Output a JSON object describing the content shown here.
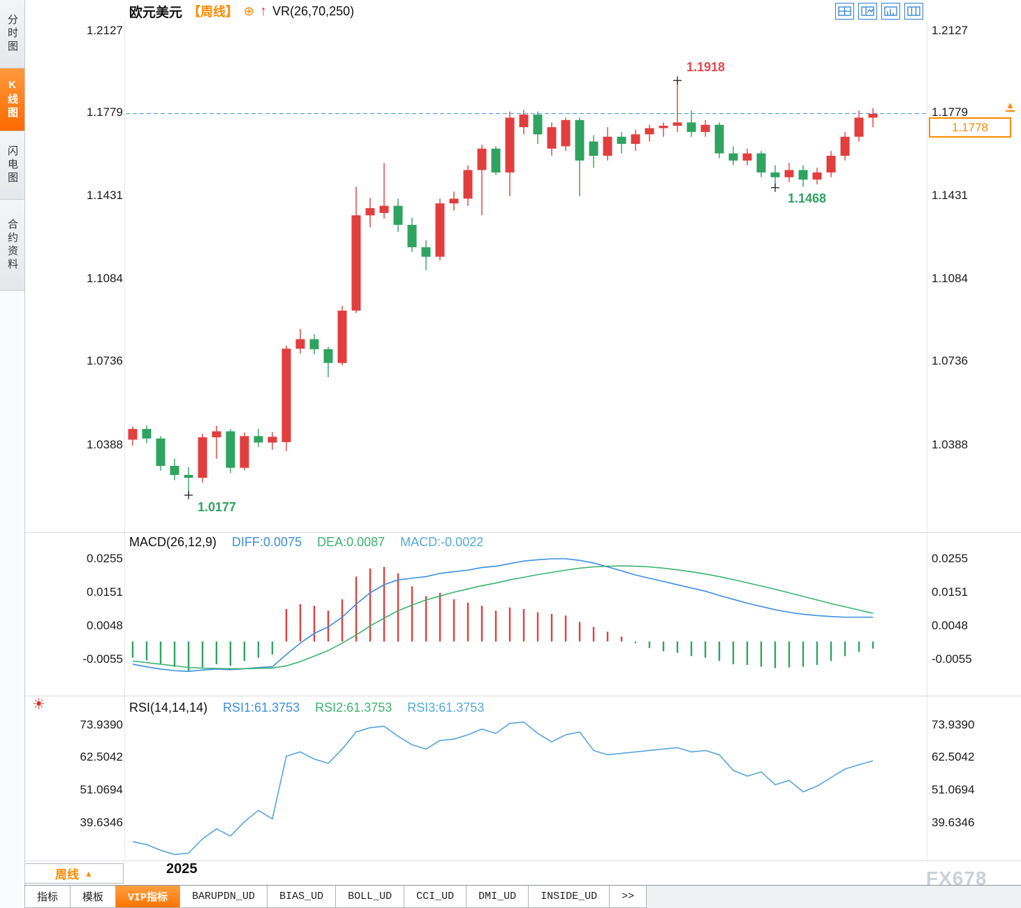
{
  "watermark": "FX678",
  "sidebar": {
    "items": [
      {
        "label": "分时图",
        "active": false
      },
      {
        "label": "K线图",
        "active": true
      },
      {
        "label": "闪电图",
        "active": false
      },
      {
        "label": "合约资料",
        "active": false
      }
    ]
  },
  "header": {
    "symbol": "欧元美元",
    "period_tag": "【周线】",
    "plus_icon": "⊕",
    "arrow_icon": "↑",
    "indicator": "VR(26,70,250)"
  },
  "icons": {
    "layout_icons": [
      "four-pane-grid",
      "two-pane-layout",
      "bar-pane-layout",
      "multi-column-layout"
    ],
    "rsi_settings_glyph": "☀",
    "price_marker_glyph": "▲"
  },
  "price_axis": {
    "ticks": [
      "1.2127",
      "1.1779",
      "1.1431",
      "1.1084",
      "1.0736",
      "1.0388"
    ],
    "current_price": "1.1778"
  },
  "annotations": {
    "high": "1.1918",
    "low_mid": "1.1468",
    "low": "1.0177"
  },
  "macd_panel": {
    "title": "MACD(26,12,9)",
    "diff_label": "DIFF:0.0075",
    "dea_label": "DEA:0.0087",
    "macd_label": "MACD:-0.0022",
    "ticks": [
      "0.0255",
      "0.0151",
      "0.0048",
      "-0.0055"
    ]
  },
  "rsi_panel": {
    "title": "RSI(14,14,14)",
    "rsi1_label": "RSI1:61.3753",
    "rsi2_label": "RSI2:61.3753",
    "rsi3_label": "RSI3:61.3753",
    "ticks": [
      "73.9390",
      "62.5042",
      "51.0694",
      "39.6346"
    ]
  },
  "bottom": {
    "timeframe": "周线",
    "timeframe_arrow": "▲",
    "year_label": "2025",
    "tabs": [
      {
        "label": "指标",
        "active": false
      },
      {
        "label": "模板",
        "active": false
      },
      {
        "label": "VIP指标",
        "active": true
      },
      {
        "label": "BARUPDN_UD",
        "active": false
      },
      {
        "label": "BIAS_UD",
        "active": false
      },
      {
        "label": "BOLL_UD",
        "active": false
      },
      {
        "label": "CCI_UD",
        "active": false
      },
      {
        "label": "DMI_UD",
        "active": false
      },
      {
        "label": "INSIDE_UD",
        "active": false
      },
      {
        "label": ">>",
        "active": false
      }
    ]
  },
  "chart_data": [
    {
      "type": "candlestick",
      "title": "欧元美元 周线 (EURUSD weekly)",
      "x_start_label": "2025",
      "yticks": [
        1.2127,
        1.1779,
        1.1431,
        1.1084,
        1.0736,
        1.0388
      ],
      "ylim": [
        1.0027,
        1.2168
      ],
      "dashed_level": 1.1779,
      "dashed_color": "#3f8fde",
      "up_color": "#e23e3e",
      "down_color": "#2fa360",
      "markers": [
        {
          "i": 39,
          "price": 1.1918,
          "label": "1.1918"
        },
        {
          "i": 46,
          "price": 1.1468,
          "label": "1.1468"
        },
        {
          "i": 4,
          "price": 1.0177,
          "label": "1.0177"
        }
      ],
      "candles": [
        [
          1.041,
          1.0465,
          1.0385,
          1.0455
        ],
        [
          1.0455,
          1.047,
          1.0395,
          1.0415
        ],
        [
          1.0415,
          1.0425,
          1.028,
          1.03
        ],
        [
          1.03,
          1.033,
          1.024,
          1.0262
        ],
        [
          1.0262,
          1.0295,
          1.0177,
          1.025
        ],
        [
          1.025,
          1.0435,
          1.023,
          1.042
        ],
        [
          1.042,
          1.0468,
          1.033,
          1.0445
        ],
        [
          1.0445,
          1.0455,
          1.027,
          1.0292
        ],
        [
          1.0292,
          1.044,
          1.0282,
          1.0425
        ],
        [
          1.0425,
          1.0455,
          1.038,
          1.0398
        ],
        [
          1.0398,
          1.0442,
          1.0368,
          1.0422
        ],
        [
          1.04,
          1.0805,
          1.0362,
          1.0792
        ],
        [
          1.0792,
          1.0875,
          1.0772,
          1.0832
        ],
        [
          1.0832,
          1.0852,
          1.0768,
          1.079
        ],
        [
          1.079,
          1.08,
          1.0672,
          1.0732
        ],
        [
          1.0732,
          1.0972,
          1.0722,
          1.0952
        ],
        [
          1.0952,
          1.1472,
          1.0942,
          1.1352
        ],
        [
          1.1352,
          1.1425,
          1.1302,
          1.1382
        ],
        [
          1.1362,
          1.1572,
          1.1338,
          1.1392
        ],
        [
          1.1392,
          1.1422,
          1.1282,
          1.1312
        ],
        [
          1.1312,
          1.1342,
          1.1198,
          1.1218
        ],
        [
          1.1218,
          1.1248,
          1.1122,
          1.1178
        ],
        [
          1.1178,
          1.1422,
          1.1162,
          1.1402
        ],
        [
          1.1402,
          1.1452,
          1.1372,
          1.1422
        ],
        [
          1.1422,
          1.1562,
          1.1392,
          1.1542
        ],
        [
          1.1542,
          1.1648,
          1.1352,
          1.1632
        ],
        [
          1.1632,
          1.1642,
          1.1522,
          1.1532
        ],
        [
          1.1532,
          1.1788,
          1.1432,
          1.1762
        ],
        [
          1.1722,
          1.1795,
          1.1692,
          1.1775
        ],
        [
          1.1775,
          1.1788,
          1.1652,
          1.1692
        ],
        [
          1.1632,
          1.1742,
          1.1602,
          1.1722
        ],
        [
          1.1642,
          1.1762,
          1.1622,
          1.1752
        ],
        [
          1.1752,
          1.1762,
          1.1432,
          1.1582
        ],
        [
          1.1662,
          1.1688,
          1.1552,
          1.1602
        ],
        [
          1.1602,
          1.1722,
          1.1582,
          1.1682
        ],
        [
          1.1682,
          1.1702,
          1.1612,
          1.1652
        ],
        [
          1.1652,
          1.1712,
          1.1622,
          1.1692
        ],
        [
          1.1692,
          1.1732,
          1.1662,
          1.1718
        ],
        [
          1.1718,
          1.1742,
          1.1682,
          1.1728
        ],
        [
          1.1728,
          1.1918,
          1.1702,
          1.1742
        ],
        [
          1.1742,
          1.1792,
          1.1682,
          1.1702
        ],
        [
          1.1702,
          1.1752,
          1.1682,
          1.1732
        ],
        [
          1.1732,
          1.1742,
          1.1592,
          1.1612
        ],
        [
          1.1612,
          1.1642,
          1.1562,
          1.1582
        ],
        [
          1.1582,
          1.1632,
          1.1562,
          1.1612
        ],
        [
          1.1612,
          1.1622,
          1.1512,
          1.1532
        ],
        [
          1.1532,
          1.1562,
          1.1468,
          1.1512
        ],
        [
          1.1512,
          1.1572,
          1.1492,
          1.1542
        ],
        [
          1.1542,
          1.1562,
          1.1472,
          1.1502
        ],
        [
          1.1502,
          1.1552,
          1.1482,
          1.1532
        ],
        [
          1.1532,
          1.1622,
          1.1512,
          1.1602
        ],
        [
          1.1602,
          1.1702,
          1.1582,
          1.1682
        ],
        [
          1.1682,
          1.1792,
          1.1662,
          1.1762
        ],
        [
          1.1762,
          1.1802,
          1.1722,
          1.1778
        ]
      ]
    },
    {
      "type": "macd",
      "title": "MACD(26,12,9)",
      "yticks": [
        0.0255,
        0.0151,
        0.0048,
        -0.0055
      ],
      "diff_color": "#3d8ee0",
      "dea_color": "#3cb371",
      "hist_up": "#e23e3e",
      "hist_down": "#2fa360",
      "diff": [
        -0.007,
        -0.0078,
        -0.0085,
        -0.009,
        -0.0092,
        -0.0088,
        -0.0085,
        -0.0087,
        -0.0084,
        -0.008,
        -0.0078,
        -0.004,
        -0.0005,
        0.0025,
        0.0045,
        0.0075,
        0.0115,
        0.015,
        0.0175,
        0.019,
        0.0195,
        0.02,
        0.021,
        0.0215,
        0.022,
        0.0228,
        0.0232,
        0.024,
        0.0248,
        0.0252,
        0.0255,
        0.0255,
        0.025,
        0.0242,
        0.023,
        0.0218,
        0.0205,
        0.0195,
        0.0185,
        0.0175,
        0.0165,
        0.0155,
        0.0142,
        0.013,
        0.0118,
        0.0108,
        0.0098,
        0.009,
        0.0084,
        0.008,
        0.0077,
        0.0075,
        0.0075,
        0.0075
      ],
      "dea": [
        -0.006,
        -0.0065,
        -0.007,
        -0.0075,
        -0.008,
        -0.0082,
        -0.0083,
        -0.0084,
        -0.0084,
        -0.0083,
        -0.0082,
        -0.0075,
        -0.0062,
        -0.0045,
        -0.0028,
        -0.0005,
        0.002,
        0.0048,
        0.0072,
        0.0095,
        0.0112,
        0.0128,
        0.014,
        0.0152,
        0.0162,
        0.0172,
        0.018,
        0.019,
        0.0198,
        0.0206,
        0.0213,
        0.022,
        0.0226,
        0.023,
        0.0232,
        0.0233,
        0.0232,
        0.023,
        0.0226,
        0.0221,
        0.0215,
        0.0208,
        0.02,
        0.0191,
        0.0181,
        0.0171,
        0.0161,
        0.015,
        0.0139,
        0.0128,
        0.0117,
        0.0107,
        0.0097,
        0.0087
      ],
      "hist": [
        -0.005,
        -0.0058,
        -0.0068,
        -0.0078,
        -0.009,
        -0.008,
        -0.007,
        -0.0075,
        -0.006,
        -0.005,
        -0.004,
        0.01,
        0.0115,
        0.011,
        0.0095,
        0.013,
        0.02,
        0.0225,
        0.023,
        0.021,
        0.017,
        0.014,
        0.015,
        0.013,
        0.012,
        0.011,
        0.0095,
        0.0105,
        0.01,
        0.009,
        0.0085,
        0.008,
        0.006,
        0.0045,
        0.003,
        0.0015,
        -0.0005,
        -0.002,
        -0.003,
        -0.0035,
        -0.0045,
        -0.005,
        -0.006,
        -0.007,
        -0.0072,
        -0.0078,
        -0.0082,
        -0.008,
        -0.0078,
        -0.0072,
        -0.006,
        -0.0045,
        -0.0032,
        -0.0022
      ]
    },
    {
      "type": "line",
      "title": "RSI(14,14,14)",
      "yticks": [
        73.939,
        62.5042,
        51.0694,
        39.6346
      ],
      "color": "#57a5dc",
      "values": [
        33,
        32,
        30,
        28.5,
        29,
        34,
        37.5,
        35,
        40,
        44,
        41,
        63,
        64.5,
        62,
        60.5,
        65.5,
        71.5,
        73,
        73.5,
        70,
        67,
        65.5,
        68.5,
        69,
        70.5,
        72.5,
        71,
        74.5,
        75,
        71,
        68,
        70.5,
        71.5,
        65,
        63.5,
        64,
        64.5,
        65,
        65.5,
        66,
        64.5,
        65,
        63.5,
        58,
        56,
        57.5,
        53,
        54.5,
        50.5,
        52.5,
        55.5,
        58.5,
        60,
        61.38
      ]
    }
  ]
}
